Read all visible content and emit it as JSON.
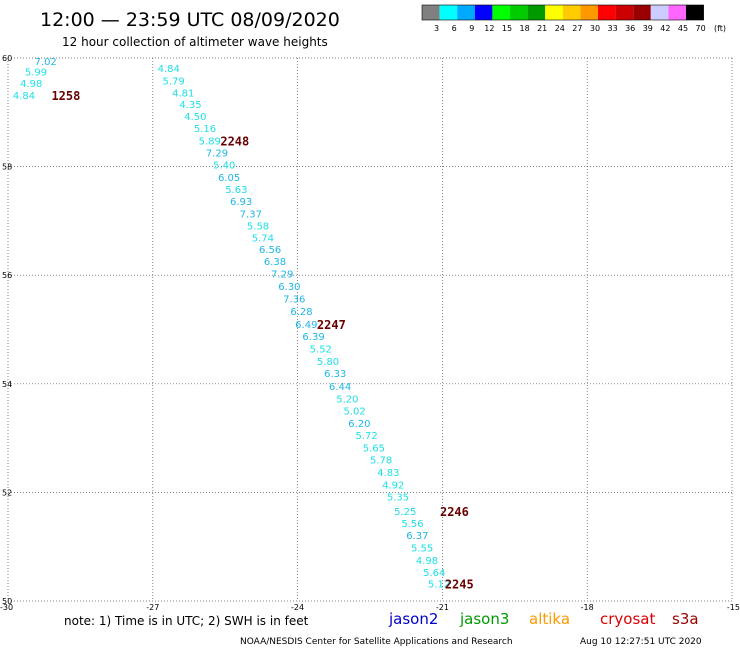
{
  "header": {
    "title": "12:00 — 23:59 UTC 08/09/2020",
    "subtitle": "12 hour collection of altimeter wave heights"
  },
  "legend": {
    "unit_label": "(ft)",
    "colors": [
      "#808080",
      "#00ffff",
      "#00aaff",
      "#0000ff",
      "#00ff00",
      "#00cc00",
      "#009900",
      "#ffff00",
      "#ffcc00",
      "#ff9900",
      "#ff0000",
      "#cc0000",
      "#990000",
      "#ccccff",
      "#ff66ff",
      "#000000"
    ],
    "ticks": [
      "3",
      "6",
      "9",
      "12",
      "15",
      "18",
      "21",
      "24",
      "27",
      "30",
      "33",
      "36",
      "39",
      "42",
      "45",
      "70"
    ]
  },
  "chart_data": {
    "type": "scatter",
    "title": "12:00 — 23:59 UTC 08/09/2020",
    "subtitle": "12 hour collection of altimeter wave heights",
    "xlim": [
      -30,
      -15
    ],
    "ylim": [
      50,
      60
    ],
    "xticks": [
      "-30",
      "-27",
      "-24",
      "-21",
      "-18",
      "-15"
    ],
    "yticks": [
      "50",
      "52",
      "54",
      "56",
      "58",
      "60"
    ],
    "grid": true,
    "series": [
      {
        "name": "jason2",
        "points": [
          {
            "x": -29.45,
            "y": 59.93,
            "v": "7.02"
          },
          {
            "x": -29.65,
            "y": 59.73,
            "v": "5.99"
          },
          {
            "x": -29.75,
            "y": 59.52,
            "v": "4.98"
          },
          {
            "x": -29.9,
            "y": 59.3,
            "v": "4.84"
          },
          {
            "x": -26.9,
            "y": 59.8,
            "v": "4.84"
          },
          {
            "x": -26.8,
            "y": 59.57,
            "v": "5.79"
          },
          {
            "x": -26.6,
            "y": 59.35,
            "v": "4.81"
          },
          {
            "x": -26.45,
            "y": 59.13,
            "v": "4.35"
          },
          {
            "x": -26.35,
            "y": 58.91,
            "v": "4.50"
          },
          {
            "x": -26.15,
            "y": 58.69,
            "v": "5.16"
          },
          {
            "x": -26.05,
            "y": 58.46,
            "v": "5.89"
          },
          {
            "x": -25.9,
            "y": 58.24,
            "v": "7.29"
          },
          {
            "x": -25.75,
            "y": 58.02,
            "v": "5.40"
          },
          {
            "x": -25.65,
            "y": 57.79,
            "v": "6.05"
          },
          {
            "x": -25.5,
            "y": 57.57,
            "v": "5.63"
          },
          {
            "x": -25.4,
            "y": 57.35,
            "v": "6.93"
          },
          {
            "x": -25.2,
            "y": 57.12,
            "v": "7.37"
          },
          {
            "x": -25.05,
            "y": 56.9,
            "v": "5.58"
          },
          {
            "x": -24.95,
            "y": 56.68,
            "v": "5.74"
          },
          {
            "x": -24.8,
            "y": 56.46,
            "v": "6.56"
          },
          {
            "x": -24.7,
            "y": 56.24,
            "v": "6.38"
          },
          {
            "x": -24.55,
            "y": 56.01,
            "v": "7.29"
          },
          {
            "x": -24.4,
            "y": 55.78,
            "v": "6.30"
          },
          {
            "x": -24.3,
            "y": 55.55,
            "v": "7.36"
          },
          {
            "x": -24.15,
            "y": 55.32,
            "v": "6.28"
          },
          {
            "x": -24.05,
            "y": 55.08,
            "v": "6.49"
          },
          {
            "x": -23.9,
            "y": 54.86,
            "v": "6.39"
          },
          {
            "x": -23.75,
            "y": 54.63,
            "v": "5.52"
          },
          {
            "x": -23.6,
            "y": 54.4,
            "v": "5.80"
          },
          {
            "x": -23.45,
            "y": 54.18,
            "v": "6.33"
          },
          {
            "x": -23.35,
            "y": 53.94,
            "v": "6.44"
          },
          {
            "x": -23.2,
            "y": 53.71,
            "v": "5.20"
          },
          {
            "x": -23.05,
            "y": 53.49,
            "v": "5.02"
          },
          {
            "x": -22.95,
            "y": 53.26,
            "v": "6.20"
          },
          {
            "x": -22.8,
            "y": 53.04,
            "v": "5.72"
          },
          {
            "x": -22.65,
            "y": 52.81,
            "v": "5.65"
          },
          {
            "x": -22.5,
            "y": 52.59,
            "v": "5.78"
          },
          {
            "x": -22.35,
            "y": 52.36,
            "v": "4.83"
          },
          {
            "x": -22.25,
            "y": 52.13,
            "v": "4.92"
          },
          {
            "x": -22.15,
            "y": 51.91,
            "v": "5.35"
          },
          {
            "x": -22.0,
            "y": 51.64,
            "v": "5.25"
          },
          {
            "x": -21.85,
            "y": 51.42,
            "v": "5.56"
          },
          {
            "x": -21.75,
            "y": 51.2,
            "v": "6.37"
          },
          {
            "x": -21.65,
            "y": 50.97,
            "v": "5.55"
          },
          {
            "x": -21.55,
            "y": 50.74,
            "v": "4.98"
          },
          {
            "x": -21.4,
            "y": 50.52,
            "v": "5.64"
          },
          {
            "x": -21.3,
            "y": 50.3,
            "v": "5.12"
          }
        ]
      }
    ],
    "pass_labels": [
      {
        "x": -29.1,
        "y": 59.3,
        "text": "1258"
      },
      {
        "x": -25.6,
        "y": 58.46,
        "text": "2248"
      },
      {
        "x": -23.6,
        "y": 55.08,
        "text": "2247"
      },
      {
        "x": -21.05,
        "y": 51.64,
        "text": "2246"
      },
      {
        "x": -20.95,
        "y": 50.3,
        "text": "2245"
      }
    ]
  },
  "footer": {
    "note": "note: 1) Time is in UTC; 2) SWH is in feet",
    "satellites": [
      {
        "name": "jason2",
        "color": "#0000cc"
      },
      {
        "name": "jason3",
        "color": "#009900"
      },
      {
        "name": "altika",
        "color": "#ff9900"
      },
      {
        "name": "cryosat",
        "color": "#dd0000"
      },
      {
        "name": "s3a",
        "color": "#990000"
      }
    ],
    "credit": "NOAA/NESDIS Center for Satellite Applications and Research",
    "timestamp": "Aug 10 12:27:51 UTC 2020"
  }
}
